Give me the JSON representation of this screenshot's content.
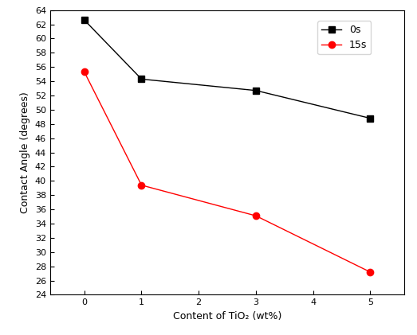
{
  "chart_data": {
    "type": "line",
    "x_label": "Content of TiO₂ (wt%)",
    "y_label": "Contact Angle (degrees)",
    "x": [
      0,
      1,
      3,
      5
    ],
    "series": [
      {
        "name": "0s",
        "color": "#000000",
        "marker": "square",
        "line_style": "solid",
        "values": [
          62.6,
          54.3,
          52.7,
          48.8
        ]
      },
      {
        "name": "15s",
        "color": "#ff0000",
        "marker": "circle",
        "line_style": "solid",
        "values": [
          55.3,
          39.4,
          35.1,
          27.2
        ]
      }
    ],
    "xlim": [
      -0.6,
      5.6
    ],
    "xticks": [
      0,
      1,
      2,
      3,
      4,
      5
    ],
    "ylim": [
      24,
      64
    ],
    "yticks": [
      24,
      26,
      28,
      30,
      32,
      34,
      36,
      38,
      40,
      42,
      44,
      46,
      48,
      50,
      52,
      54,
      56,
      58,
      60,
      62,
      64
    ],
    "legend": "upper right",
    "grid": false
  }
}
